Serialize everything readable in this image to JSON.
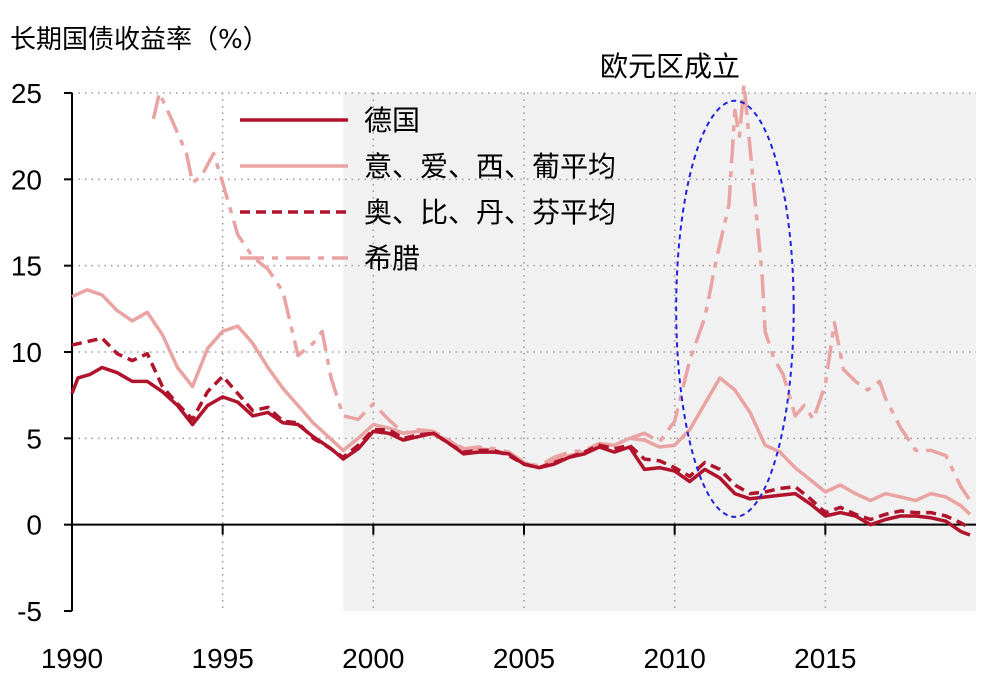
{
  "chart_data": {
    "type": "line",
    "title": "",
    "ylabel": "长期国债收益率（%）",
    "xlabel": "",
    "xlim": [
      1990,
      2020
    ],
    "ylim": [
      -5,
      25
    ],
    "x_ticks": [
      1990,
      1995,
      2000,
      2005,
      2010,
      2015
    ],
    "y_ticks": [
      25,
      20,
      15,
      10,
      5,
      0,
      -5
    ],
    "grid": "dotted",
    "shaded_region": [
      1999,
      2020
    ],
    "annotation": {
      "text": "欧元区成立"
    },
    "legend_position": "top-center",
    "series": [
      {
        "name": "德国",
        "color": "#b0132b",
        "style": "solid",
        "points": [
          [
            1990,
            7.6
          ],
          [
            1990.2,
            8.5
          ],
          [
            1990.6,
            8.7
          ],
          [
            1991,
            9.1
          ],
          [
            1991.5,
            8.8
          ],
          [
            1992,
            8.3
          ],
          [
            1992.5,
            8.3
          ],
          [
            1993,
            7.7
          ],
          [
            1993.5,
            6.9
          ],
          [
            1994,
            5.8
          ],
          [
            1994.5,
            6.9
          ],
          [
            1995,
            7.4
          ],
          [
            1995.5,
            7.1
          ],
          [
            1996,
            6.3
          ],
          [
            1996.5,
            6.5
          ],
          [
            1997,
            5.9
          ],
          [
            1997.5,
            5.8
          ],
          [
            1998,
            5.1
          ],
          [
            1998.6,
            4.4
          ],
          [
            1999,
            3.8
          ],
          [
            1999.5,
            4.4
          ],
          [
            2000,
            5.4
          ],
          [
            2000.5,
            5.3
          ],
          [
            2001,
            4.9
          ],
          [
            2001.5,
            5.1
          ],
          [
            2002,
            5.3
          ],
          [
            2002.6,
            4.6
          ],
          [
            2003,
            4.1
          ],
          [
            2003.5,
            4.2
          ],
          [
            2004,
            4.2
          ],
          [
            2004.5,
            4.1
          ],
          [
            2005,
            3.5
          ],
          [
            2005.5,
            3.3
          ],
          [
            2006,
            3.5
          ],
          [
            2006.5,
            3.9
          ],
          [
            2007,
            4.1
          ],
          [
            2007.5,
            4.5
          ],
          [
            2008,
            4.2
          ],
          [
            2008.5,
            4.5
          ],
          [
            2009,
            3.2
          ],
          [
            2009.5,
            3.3
          ],
          [
            2010,
            3.1
          ],
          [
            2010.5,
            2.5
          ],
          [
            2011,
            3.2
          ],
          [
            2011.5,
            2.7
          ],
          [
            2012,
            1.8
          ],
          [
            2012.5,
            1.5
          ],
          [
            2013,
            1.6
          ],
          [
            2013.5,
            1.7
          ],
          [
            2014,
            1.8
          ],
          [
            2014.5,
            1.2
          ],
          [
            2015,
            0.5
          ],
          [
            2015.5,
            0.7
          ],
          [
            2016,
            0.5
          ],
          [
            2016.5,
            0.0
          ],
          [
            2017,
            0.3
          ],
          [
            2017.5,
            0.5
          ],
          [
            2018,
            0.5
          ],
          [
            2018.5,
            0.4
          ],
          [
            2019,
            0.2
          ],
          [
            2019.5,
            -0.4
          ],
          [
            2019.8,
            -0.6
          ]
        ]
      },
      {
        "name": "意、爱、西、葡平均",
        "color": "#eaa3a3",
        "style": "solid",
        "points": [
          [
            1990,
            13.2
          ],
          [
            1990.5,
            13.6
          ],
          [
            1991,
            13.3
          ],
          [
            1991.5,
            12.4
          ],
          [
            1992,
            11.8
          ],
          [
            1992.5,
            12.3
          ],
          [
            1993,
            11.0
          ],
          [
            1993.5,
            9.1
          ],
          [
            1994,
            8.0
          ],
          [
            1994.5,
            10.2
          ],
          [
            1995,
            11.2
          ],
          [
            1995.5,
            11.5
          ],
          [
            1996,
            10.5
          ],
          [
            1996.5,
            9.1
          ],
          [
            1997,
            7.9
          ],
          [
            1997.5,
            6.9
          ],
          [
            1998,
            5.9
          ],
          [
            1998.5,
            5.1
          ],
          [
            1999,
            4.3
          ],
          [
            1999.5,
            5.0
          ],
          [
            2000,
            5.8
          ],
          [
            2000.5,
            5.6
          ],
          [
            2001,
            5.3
          ],
          [
            2001.5,
            5.4
          ],
          [
            2002,
            5.2
          ],
          [
            2002.5,
            4.9
          ],
          [
            2003,
            4.3
          ],
          [
            2003.5,
            4.4
          ],
          [
            2004,
            4.3
          ],
          [
            2004.5,
            4.1
          ],
          [
            2005,
            3.6
          ],
          [
            2005.5,
            3.3
          ],
          [
            2006,
            3.7
          ],
          [
            2006.5,
            4.0
          ],
          [
            2007,
            4.2
          ],
          [
            2007.5,
            4.6
          ],
          [
            2008,
            4.6
          ],
          [
            2008.5,
            5.0
          ],
          [
            2009,
            4.9
          ],
          [
            2009.5,
            4.5
          ],
          [
            2010,
            4.6
          ],
          [
            2010.5,
            5.5
          ],
          [
            2011,
            7.0
          ],
          [
            2011.5,
            8.5
          ],
          [
            2012,
            7.8
          ],
          [
            2012.5,
            6.5
          ],
          [
            2013,
            4.6
          ],
          [
            2013.5,
            4.2
          ],
          [
            2014,
            3.3
          ],
          [
            2014.5,
            2.6
          ],
          [
            2015,
            1.9
          ],
          [
            2015.5,
            2.3
          ],
          [
            2016,
            1.8
          ],
          [
            2016.5,
            1.4
          ],
          [
            2017,
            1.8
          ],
          [
            2017.5,
            1.6
          ],
          [
            2018,
            1.4
          ],
          [
            2018.5,
            1.8
          ],
          [
            2019,
            1.6
          ],
          [
            2019.5,
            1.1
          ],
          [
            2019.8,
            0.6
          ]
        ]
      },
      {
        "name": "奥、比、丹、芬平均",
        "color": "#b0132b",
        "style": "dashed",
        "points": [
          [
            1990,
            10.4
          ],
          [
            1990.5,
            10.6
          ],
          [
            1991,
            10.8
          ],
          [
            1991.5,
            9.9
          ],
          [
            1992,
            9.5
          ],
          [
            1992.5,
            9.9
          ],
          [
            1993,
            8.0
          ],
          [
            1993.5,
            7.0
          ],
          [
            1994,
            6.1
          ],
          [
            1994.5,
            7.7
          ],
          [
            1995,
            8.6
          ],
          [
            1995.5,
            7.6
          ],
          [
            1996,
            6.6
          ],
          [
            1996.5,
            6.8
          ],
          [
            1997,
            6.0
          ],
          [
            1997.5,
            5.9
          ],
          [
            1998,
            5.0
          ],
          [
            1998.5,
            4.5
          ],
          [
            1999,
            3.9
          ],
          [
            1999.5,
            4.6
          ],
          [
            2000,
            5.5
          ],
          [
            2000.5,
            5.5
          ],
          [
            2001,
            5.0
          ],
          [
            2001.5,
            5.2
          ],
          [
            2002,
            5.3
          ],
          [
            2002.5,
            4.7
          ],
          [
            2003,
            4.2
          ],
          [
            2003.5,
            4.3
          ],
          [
            2004,
            4.3
          ],
          [
            2004.5,
            4.0
          ],
          [
            2005,
            3.5
          ],
          [
            2005.5,
            3.3
          ],
          [
            2006,
            3.6
          ],
          [
            2006.5,
            3.9
          ],
          [
            2007,
            4.2
          ],
          [
            2007.5,
            4.6
          ],
          [
            2008,
            4.4
          ],
          [
            2008.5,
            4.6
          ],
          [
            2009,
            3.8
          ],
          [
            2009.5,
            3.7
          ],
          [
            2010,
            3.3
          ],
          [
            2010.5,
            2.8
          ],
          [
            2011,
            3.6
          ],
          [
            2011.5,
            3.2
          ],
          [
            2012,
            2.3
          ],
          [
            2012.5,
            1.8
          ],
          [
            2013,
            1.9
          ],
          [
            2013.5,
            2.1
          ],
          [
            2014,
            2.2
          ],
          [
            2014.5,
            1.5
          ],
          [
            2015,
            0.7
          ],
          [
            2015.5,
            1.0
          ],
          [
            2016,
            0.6
          ],
          [
            2016.5,
            0.3
          ],
          [
            2017,
            0.6
          ],
          [
            2017.5,
            0.8
          ],
          [
            2018,
            0.7
          ],
          [
            2018.5,
            0.7
          ],
          [
            2019,
            0.5
          ],
          [
            2019.5,
            0.1
          ],
          [
            2019.8,
            -0.2
          ]
        ]
      },
      {
        "name": "希腊",
        "color": "#eaa3a3",
        "style": "dash-dot",
        "points": [
          [
            1992.7,
            23.5
          ],
          [
            1992.9,
            25.0
          ],
          [
            1993.3,
            23.5
          ],
          [
            1993.8,
            21.5
          ],
          [
            1994,
            19.8
          ],
          [
            1994.3,
            20.2
          ],
          [
            1994.7,
            21.5
          ],
          [
            1995,
            19.8
          ],
          [
            1995.5,
            16.8
          ],
          [
            1996,
            15.5
          ],
          [
            1996.5,
            14.8
          ],
          [
            1997,
            13.5
          ],
          [
            1997.5,
            9.8
          ],
          [
            1998,
            10.5
          ],
          [
            1998.3,
            11.2
          ],
          [
            1998.6,
            8.5
          ],
          [
            1999,
            6.3
          ],
          [
            1999.5,
            6.1
          ],
          [
            2000,
            7.0
          ],
          [
            2000.5,
            6.1
          ],
          [
            2001,
            5.3
          ],
          [
            2001.5,
            5.5
          ],
          [
            2002,
            5.4
          ],
          [
            2002.5,
            4.9
          ],
          [
            2003,
            4.4
          ],
          [
            2003.5,
            4.5
          ],
          [
            2004,
            4.4
          ],
          [
            2004.5,
            4.2
          ],
          [
            2005,
            3.6
          ],
          [
            2005.5,
            3.4
          ],
          [
            2006,
            3.9
          ],
          [
            2006.5,
            4.2
          ],
          [
            2007,
            4.3
          ],
          [
            2007.5,
            4.7
          ],
          [
            2008,
            4.6
          ],
          [
            2008.5,
            5.0
          ],
          [
            2009,
            5.3
          ],
          [
            2009.5,
            4.8
          ],
          [
            2010,
            6.0
          ],
          [
            2010.5,
            9.5
          ],
          [
            2011,
            12.0
          ],
          [
            2011.4,
            15.5
          ],
          [
            2011.8,
            18.5
          ],
          [
            2012,
            24.0
          ],
          [
            2012.15,
            22.5
          ],
          [
            2012.3,
            25.5
          ],
          [
            2012.6,
            20.0
          ],
          [
            2012.9,
            14.5
          ],
          [
            2013,
            11.2
          ],
          [
            2013.3,
            9.6
          ],
          [
            2013.6,
            8.7
          ],
          [
            2014,
            6.3
          ],
          [
            2014.3,
            6.9
          ],
          [
            2014.6,
            6.1
          ],
          [
            2015,
            8.1
          ],
          [
            2015.3,
            11.7
          ],
          [
            2015.6,
            9.0
          ],
          [
            2016,
            8.3
          ],
          [
            2016.4,
            7.8
          ],
          [
            2016.8,
            8.3
          ],
          [
            2017,
            7.3
          ],
          [
            2017.5,
            5.6
          ],
          [
            2018,
            4.3
          ],
          [
            2018.5,
            4.3
          ],
          [
            2019,
            4.0
          ],
          [
            2019.5,
            2.2
          ],
          [
            2019.8,
            1.4
          ]
        ]
      }
    ]
  }
}
